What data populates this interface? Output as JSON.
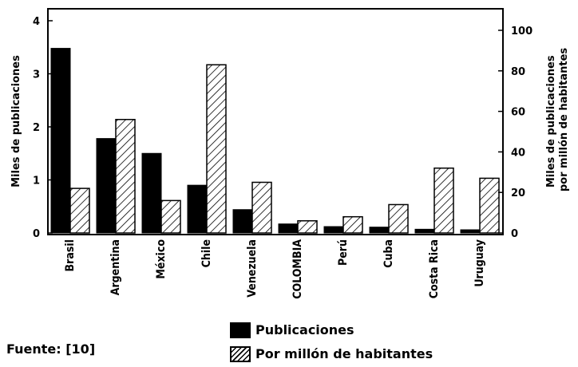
{
  "chart_data": {
    "type": "bar",
    "categories": [
      "Brasil",
      "Argentina",
      "México",
      "Chile",
      "Venezuela",
      "COLOMBIA",
      "Perú",
      "Cuba",
      "Costa Rica",
      "Uruguay"
    ],
    "series": [
      {
        "name": "Publicaciones",
        "axis": "left",
        "color": "#000000",
        "pattern": "solid",
        "values": [
          3.48,
          1.78,
          1.5,
          0.9,
          0.44,
          0.17,
          0.12,
          0.11,
          0.07,
          0.06
        ]
      },
      {
        "name": "Por millón de habitantes",
        "axis": "right",
        "color": "#000000",
        "pattern": "hatched",
        "values": [
          22,
          56,
          16,
          83,
          25,
          6,
          8,
          14,
          32,
          27
        ]
      }
    ],
    "ylabel": "Miles de publicaciones",
    "ylabel_right": [
      "Miles de publicaciones",
      "por millón de habitantes"
    ],
    "ylim": [
      0,
      4.2
    ],
    "ylim_right": [
      0,
      105
    ],
    "yticks": [
      "0",
      "1",
      "2",
      "3",
      "4"
    ],
    "yticks_right": [
      "0",
      "20",
      "40",
      "60",
      "80",
      "100"
    ],
    "grid": false,
    "legend": "bottom-center"
  },
  "source": "Fuente: [10]"
}
